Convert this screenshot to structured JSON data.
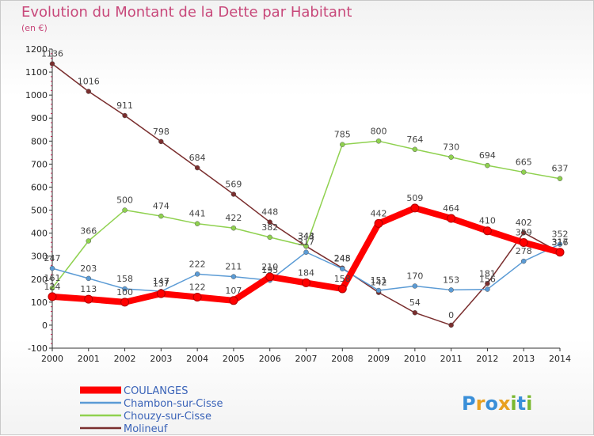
{
  "title": "Evolution du Montant de la Dette par Habitant",
  "subtitle": "(en €)",
  "brand": {
    "letters": [
      "P",
      "r",
      "o",
      "x",
      "i",
      "t",
      "i"
    ],
    "colors": [
      "#3a8fd8",
      "#e8a020",
      "#3a8fd8",
      "#e8a020",
      "#7ab830",
      "#3a8fd8",
      "#7ab830"
    ]
  },
  "chart_data": {
    "type": "line",
    "title": "Evolution du Montant de la Dette par Habitant",
    "subtitle": "(en €)",
    "xlabel": "",
    "ylabel": "",
    "ylim": [
      -100,
      1200
    ],
    "yticks": [
      -100,
      0,
      100,
      200,
      300,
      400,
      500,
      600,
      700,
      800,
      900,
      1000,
      1100,
      1200
    ],
    "x": [
      "2000",
      "2001",
      "2002",
      "2003",
      "2004",
      "2005",
      "2006",
      "2007",
      "2008",
      "2009",
      "2010",
      "2011",
      "2012",
      "2013",
      "2014"
    ],
    "grid": false,
    "legend_position": "bottom-left",
    "series": [
      {
        "name": "COULANGES",
        "color": "#ff0000",
        "values": [
          124,
          113,
          100,
          137,
          122,
          107,
          210,
          184,
          158,
          442,
          509,
          464,
          410,
          359,
          317
        ]
      },
      {
        "name": "Chambon-sur-Cisse",
        "color": "#5b9bd5",
        "values": [
          247,
          203,
          158,
          147,
          222,
          211,
          195,
          317,
          245,
          151,
          170,
          153,
          156,
          278,
          352
        ]
      },
      {
        "name": "Chouzy-sur-Cisse",
        "color": "#8fd14f",
        "values": [
          161,
          366,
          500,
          474,
          441,
          422,
          382,
          344,
          785,
          800,
          764,
          730,
          694,
          665,
          637
        ]
      },
      {
        "name": "Molineuf",
        "color": "#7a2e2e",
        "values": [
          1136,
          1016,
          911,
          798,
          684,
          569,
          448,
          343,
          248,
          142,
          54,
          0,
          181,
          402,
          316
        ]
      }
    ]
  }
}
